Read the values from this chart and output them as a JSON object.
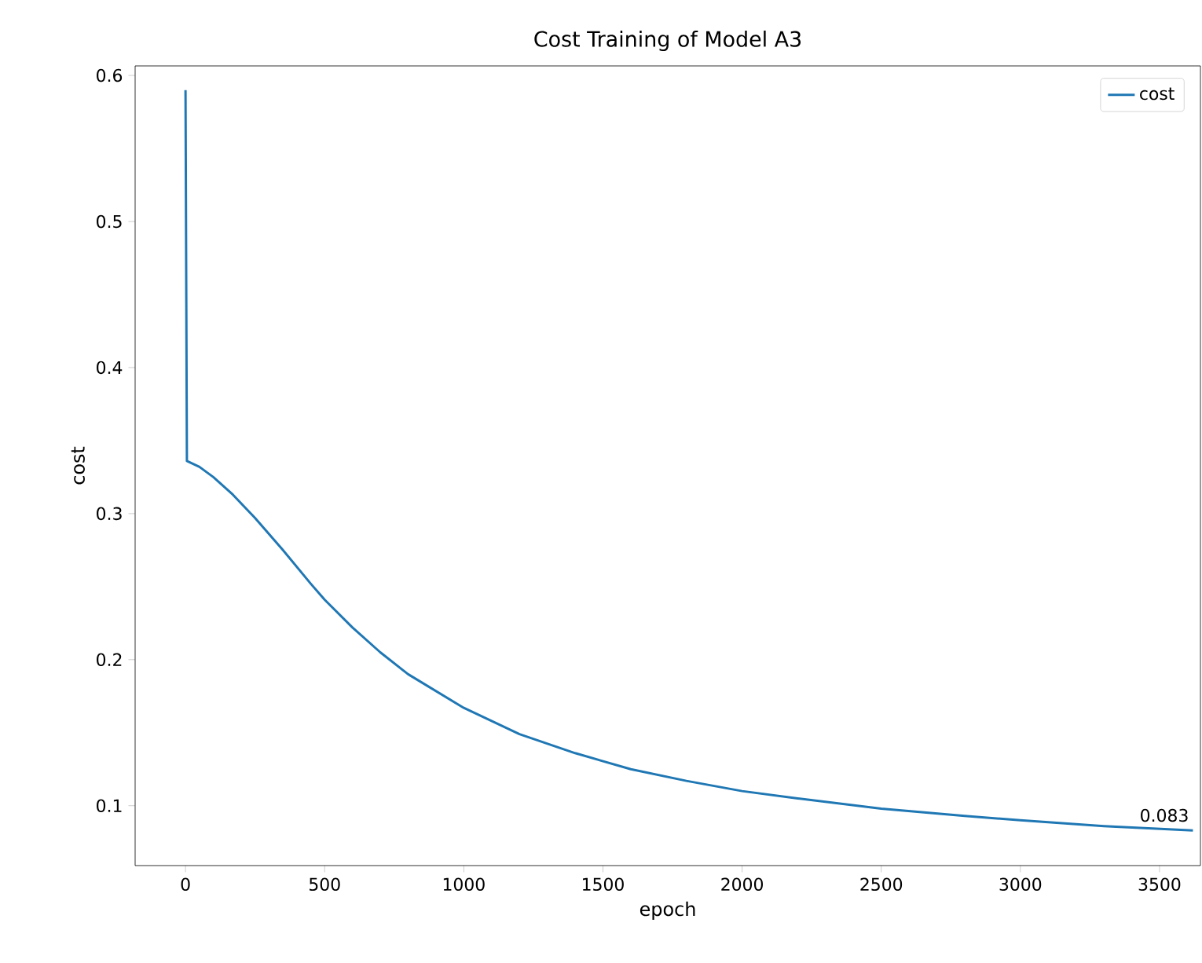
{
  "chart_data": {
    "type": "line",
    "title": "Cost Training of Model A3",
    "xlabel": "epoch",
    "ylabel": "cost",
    "series": [
      {
        "name": "cost",
        "color": "#1f77b4",
        "x": [
          0,
          5,
          50,
          100,
          170,
          250,
          350,
          450,
          500,
          600,
          700,
          800,
          1000,
          1200,
          1400,
          1600,
          1800,
          2000,
          2200,
          2500,
          2800,
          3000,
          3300,
          3620
        ],
        "values": [
          0.59,
          0.336,
          0.332,
          0.325,
          0.313,
          0.297,
          0.275,
          0.252,
          0.241,
          0.222,
          0.205,
          0.19,
          0.167,
          0.149,
          0.136,
          0.125,
          0.117,
          0.11,
          0.105,
          0.098,
          0.093,
          0.09,
          0.086,
          0.083
        ]
      }
    ],
    "annotations": [
      {
        "text": "0.083",
        "x": 3620,
        "y": 0.083
      }
    ],
    "xlim": [
      -181,
      3647
    ],
    "ylim": [
      0.059,
      0.6065
    ],
    "xticks": [
      0,
      500,
      1000,
      1500,
      2000,
      2500,
      3000,
      3500
    ],
    "yticks": [
      0.1,
      0.2,
      0.3,
      0.4,
      0.5,
      0.6
    ],
    "legend": "top right",
    "grid": false,
    "marker": "none",
    "line_style": "solid"
  }
}
